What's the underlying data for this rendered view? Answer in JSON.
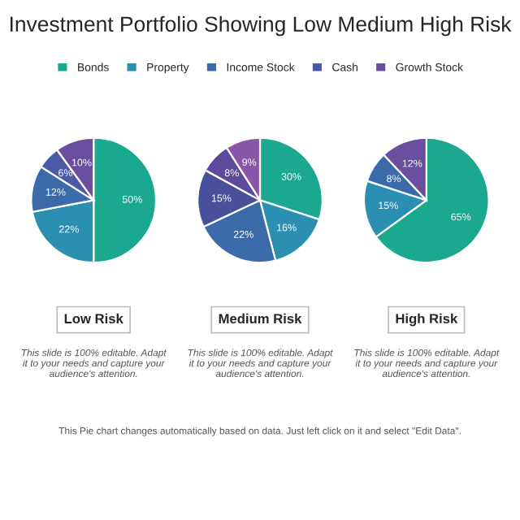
{
  "chart_data": [
    {
      "type": "pie",
      "title": "Investment Portfolio Showing Low Medium High Risk",
      "legend": "top",
      "xlabel": "Low Risk",
      "value_labels": [
        "50%",
        "22%",
        "12%",
        "6%",
        "10%"
      ],
      "categories": [
        "Bonds",
        "Property",
        "Income Stock",
        "Cash",
        "Growth Stock"
      ],
      "values": [
        50,
        22,
        12,
        6,
        10
      ],
      "colors": [
        "#1aa88f",
        "#2a8fb0",
        "#3a6aaa",
        "#4a5aa8",
        "#6a4ea0"
      ],
      "annotations": [
        "This slide is 100% editable. Adapt it to your needs and capture your audience's attention."
      ]
    },
    {
      "type": "pie",
      "xlabel": "Medium Risk",
      "value_labels": [
        "30%",
        "16%",
        "22%",
        "15%",
        "8%",
        "9%"
      ],
      "categories": [
        null,
        null,
        null,
        null,
        null,
        null
      ],
      "values": [
        30,
        16,
        22,
        15,
        8,
        9
      ],
      "colors": [
        "#1aa88f",
        "#2a8fb0",
        "#3a6aaa",
        "#4a4f9c",
        "#5c4a9c",
        "#8a55a5"
      ],
      "annotations": [
        "This slide is 100% editable. Adapt it to your needs and capture your audience's attention."
      ]
    },
    {
      "type": "pie",
      "xlabel": "High Risk",
      "value_labels": [
        "65%",
        "15%",
        "8%",
        "12%"
      ],
      "categories": [
        null,
        null,
        null,
        null
      ],
      "values": [
        65,
        15,
        8,
        12
      ],
      "colors": [
        "#1aa88f",
        "#2a8fb0",
        "#3a6aaa",
        "#6a4ea0"
      ],
      "annotations": [
        "This slide is 100% editable. Adapt it to your needs and capture your audience's attention.",
        "This Pie chart changes automatically based on data. Just left click on it and select \"Edit Data\"."
      ]
    }
  ]
}
